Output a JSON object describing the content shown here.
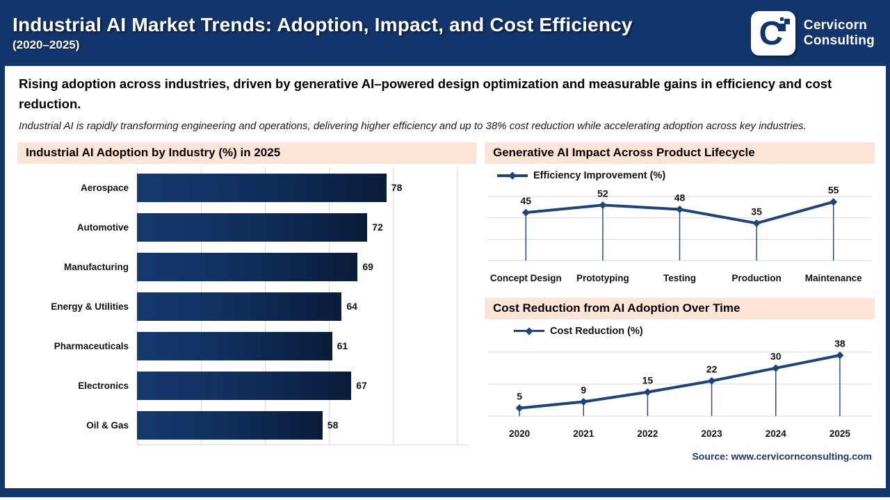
{
  "header": {
    "title": "Industrial AI Market Trends: Adoption, Impact, and Cost Efficiency",
    "subtitle": "(2020–2025)",
    "logo_letter": "C",
    "logo_name_line1": "Cervicorn",
    "logo_name_line2": "Consulting"
  },
  "intro": {
    "headline": "Rising adoption across industries, driven by generative AI–powered design optimization and measurable gains in efficiency and cost reduction.",
    "subtext": "Industrial AI is rapidly transforming engineering and operations, delivering higher efficiency and up to 38% cost reduction while accelerating adoption across key industries."
  },
  "source": "Source: www.cervicornconsulting.com",
  "colors": {
    "navy": "#12356B",
    "line": "#1E4376",
    "bar_gradient_start": "#15386E",
    "bar_gradient_end": "#0A1C39",
    "panel_title_bg": "#FCE4D6",
    "grid": "#D9D9D9",
    "source_text": "#1F3864"
  },
  "chart_data": [
    {
      "type": "bar",
      "orientation": "horizontal",
      "title": "Industrial AI Adoption by Industry (%) in 2025",
      "categories": [
        "Aerospace",
        "Automotive",
        "Manufacturing",
        "Energy & Utilities",
        "Pharmaceuticals",
        "Electronics",
        "Oil & Gas"
      ],
      "values": [
        78,
        72,
        69,
        64,
        61,
        67,
        58
      ],
      "xlim": [
        0,
        100
      ],
      "gridline_step": 20,
      "grid": true
    },
    {
      "type": "line",
      "title": "Generative AI Impact Across Product Lifecycle",
      "legend": "Efficiency Improvement (%)",
      "categories": [
        "Concept Design",
        "Prototyping",
        "Testing",
        "Production",
        "Maintenance"
      ],
      "values": [
        45,
        52,
        48,
        35,
        55
      ],
      "ylim": [
        0,
        60
      ],
      "gridline_step": 20,
      "grid": true,
      "legend_position": "top-left"
    },
    {
      "type": "line",
      "title": "Cost Reduction from AI Adoption Over Time",
      "legend": "Cost Reduction (%)",
      "categories": [
        "2020",
        "2021",
        "2022",
        "2023",
        "2024",
        "2025"
      ],
      "values": [
        5,
        9,
        15,
        22,
        30,
        38
      ],
      "ylim": [
        0,
        40
      ],
      "gridline_step": 20,
      "grid": true,
      "legend_position": "top-left"
    }
  ]
}
